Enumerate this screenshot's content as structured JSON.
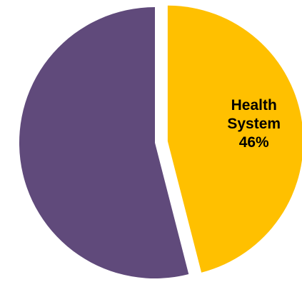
{
  "chart_data": {
    "type": "pie",
    "title": "",
    "legend": "none",
    "start_angle_deg": 0,
    "direction": "clockwise",
    "slices": [
      {
        "name": "Health System",
        "value": 46,
        "value_label": "46%",
        "label_lines": [
          "Health",
          "System",
          "46%"
        ],
        "color": "#FFC000",
        "exploded": true
      },
      {
        "name": "",
        "value": 54,
        "value_label": "",
        "label_lines": [],
        "color": "#604A7B",
        "exploded": false
      }
    ]
  }
}
